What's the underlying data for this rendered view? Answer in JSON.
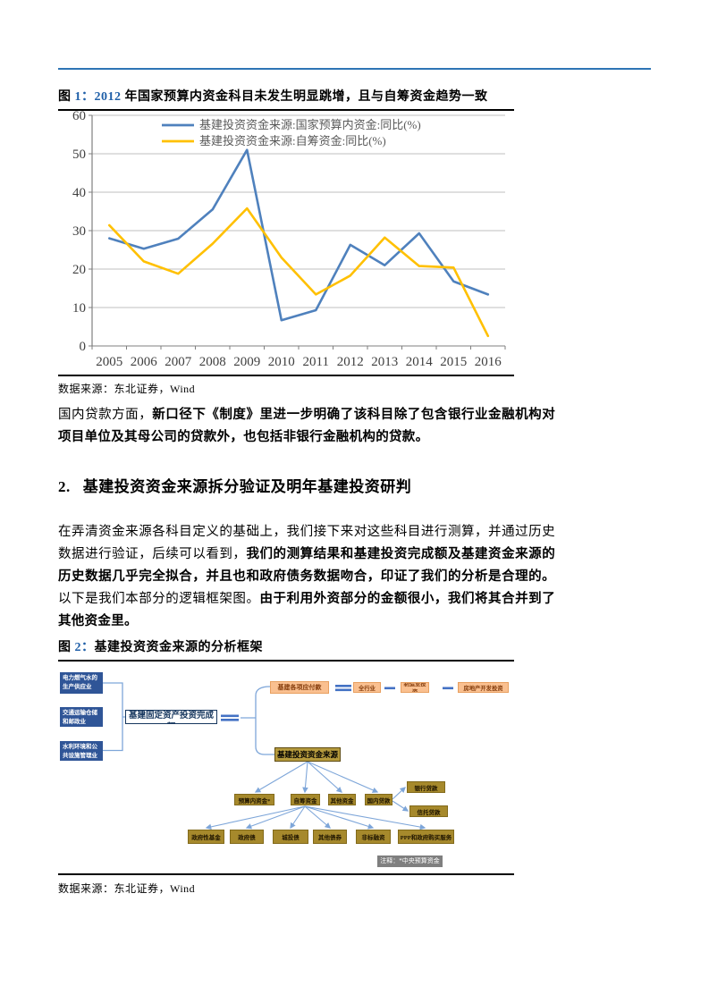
{
  "colors": {
    "accent_blue": "#2E74B5",
    "figure_number_blue": "#1F5FA8",
    "series1_blue": "#4F81BD",
    "series2_yellow": "#FFC000",
    "diagram_node_blue": "#2F5597",
    "diagram_node_peach": "#FAC090",
    "diagram_node_gold": "#A6892C",
    "diagram_line_blue": "#7EA6D9",
    "note_gray": "#7F7F7F"
  },
  "figure1": {
    "label": "图",
    "number": "1：",
    "year": "2012",
    "title_rest": " 年国家预算内资金科目未发生明显跳增，且与自筹资金趋势一致",
    "source": "数据来源：东北证券，Wind"
  },
  "chart_data": {
    "type": "line",
    "x": [
      2005,
      2006,
      2007,
      2008,
      2009,
      2010,
      2011,
      2012,
      2013,
      2014,
      2015,
      2016
    ],
    "series": [
      {
        "name": "基建投资资金来源:国家预算内资金:同比(%)",
        "color": "#4F81BD",
        "values": [
          28,
          25.3,
          27.9,
          35.5,
          51,
          6.7,
          9.3,
          26.3,
          21,
          29.3,
          16.8,
          13.4
        ]
      },
      {
        "name": "基建投资资金来源:自筹资金:同比(%)",
        "color": "#FFC000",
        "values": [
          31.4,
          22,
          18.8,
          26.6,
          35.8,
          23,
          13.4,
          18.3,
          28.2,
          20.8,
          20.4,
          2.6
        ]
      }
    ],
    "title": "",
    "xlabel": "",
    "ylabel": "",
    "ylim": [
      0,
      60
    ],
    "ytick_step": 10,
    "grid": true,
    "legend_position": "top-center"
  },
  "paragraph1": {
    "normal": "国内贷款方面，",
    "bold": "新口径下《制度》里进一步明确了该科目除了包含银行业金融机构对项目单位及其母公司的贷款外，也包括非银行金融机构的贷款。"
  },
  "section2": {
    "number": "2.",
    "title": "基建投资资金来源拆分验证及明年基建投资研判"
  },
  "paragraph2": {
    "s1": "在弄清资金来源各科目定义的基础上，我们接下来对这些科目进行测算，并通过历史数据进行验证，后续可以看到，",
    "s2": "我们的测算结果和基建投资完成额及基建资金来源的历史数据几乎完全拟合，并且也和政府债务数据吻合，印证了我们的分析是合理的。",
    "s3": "以下是我们本部分的逻辑框架图。",
    "s4": "由于利用外资部分的金额很小，我们将其合并到了其他资金里。"
  },
  "figure2": {
    "label": "图",
    "number": "2：",
    "title_rest": "基建投资资金来源的分析框架",
    "source": "数据来源：东北证券，Wind",
    "diagram": {
      "industry_boxes": [
        "电力燃气水的生产供应业",
        "交通运输仓储和邮政业",
        "水利环境和公共设施管理业"
      ],
      "total_label": "基建固定资产投资完成额",
      "payable_result": "基建各项应付款",
      "payable_minuend": "全行业",
      "payable_sub1": "制造业投资",
      "payable_sub2": "房地产开发投资",
      "source_node": "基建投资资金来源",
      "level2": [
        "预算内资金*",
        "自筹资金",
        "其他资金",
        "国内贷款"
      ],
      "loans": [
        "银行贷款",
        "信托贷款"
      ],
      "level3": [
        "政府性基金",
        "政府债",
        "城投债",
        "其他债券",
        "非标融资",
        "PPP和政府购买服务"
      ],
      "note": "注释：*中央预算资金"
    }
  }
}
